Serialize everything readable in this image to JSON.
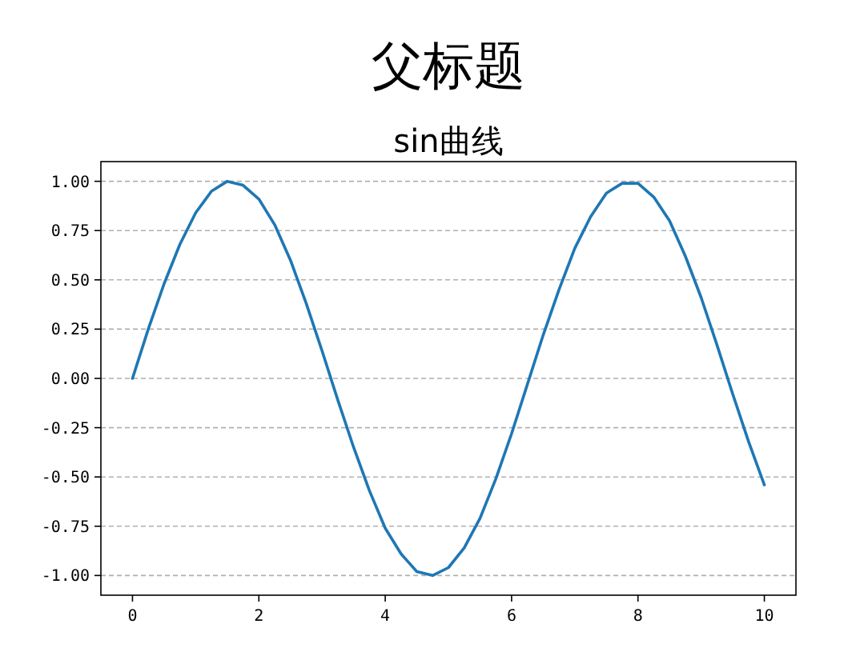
{
  "chart_data": {
    "type": "line",
    "title": "父标题",
    "subtitle": "sin曲线",
    "x": [
      0,
      0.25,
      0.5,
      0.75,
      1,
      1.25,
      1.5,
      1.75,
      2,
      2.25,
      2.5,
      2.75,
      3,
      3.25,
      3.5,
      3.75,
      4,
      4.25,
      4.5,
      4.75,
      5,
      5.25,
      5.5,
      5.75,
      6,
      6.25,
      6.5,
      6.75,
      7,
      7.25,
      7.5,
      7.75,
      8,
      8.25,
      8.5,
      8.75,
      9,
      9.25,
      9.5,
      9.75,
      10
    ],
    "values": [
      0,
      0.25,
      0.48,
      0.68,
      0.84,
      0.95,
      1.0,
      0.98,
      0.91,
      0.78,
      0.6,
      0.38,
      0.14,
      -0.11,
      -0.35,
      -0.57,
      -0.76,
      -0.89,
      -0.98,
      -1.0,
      -0.96,
      -0.86,
      -0.71,
      -0.51,
      -0.28,
      -0.03,
      0.22,
      0.45,
      0.66,
      0.82,
      0.94,
      0.99,
      0.99,
      0.92,
      0.8,
      0.62,
      0.41,
      0.17,
      -0.08,
      -0.32,
      -0.54
    ],
    "color": "#1f77b4",
    "xlim": [
      -0.5,
      10.5
    ],
    "ylim": [
      -1.1,
      1.1
    ],
    "xticks": [
      0,
      2,
      4,
      6,
      8,
      10
    ],
    "yticks": [
      {
        "value": -1,
        "label": "-1.00"
      },
      {
        "value": -0.75,
        "label": "-0.75"
      },
      {
        "value": -0.5,
        "label": "-0.50"
      },
      {
        "value": -0.25,
        "label": "-0.25"
      },
      {
        "value": 0,
        "label": "0.00"
      },
      {
        "value": 0.25,
        "label": "0.25"
      },
      {
        "value": 0.5,
        "label": "0.50"
      },
      {
        "value": 0.75,
        "label": "0.75"
      },
      {
        "value": 1,
        "label": "1.00"
      }
    ],
    "grid": "y",
    "line_style": "solid"
  }
}
